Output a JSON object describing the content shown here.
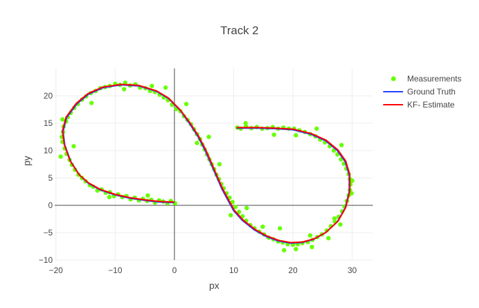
{
  "chart_data": {
    "type": "scatter",
    "title": "Track 2",
    "xlabel": "px",
    "ylabel": "py",
    "xlim": [
      -20.2,
      33.5
    ],
    "ylim": [
      -10,
      25
    ],
    "x_ticks": [
      -20,
      -10,
      0,
      10,
      20,
      30
    ],
    "y_ticks": [
      -10,
      -5,
      0,
      5,
      10,
      15,
      20
    ],
    "x_tick_labels": [
      "−20",
      "−10",
      "0",
      "10",
      "20",
      "30"
    ],
    "y_tick_labels": [
      "−10",
      "−5",
      "0",
      "5",
      "10",
      "15",
      "20"
    ],
    "grid": true,
    "zero_lines": true,
    "legend_position": "top-right",
    "legend": [
      {
        "name": "Measurements",
        "marker": "dot",
        "color": "#66ff00"
      },
      {
        "name": "Ground Truth",
        "marker": "line",
        "color": "#1f3fff"
      },
      {
        "name": "KF- Estimate",
        "marker": "line",
        "color": "#ff0000"
      }
    ],
    "series": [
      {
        "name": "Ground Truth",
        "kind": "line",
        "color": "#1f3fff",
        "points": [
          [
            0.0,
            0.5
          ],
          [
            -2.5,
            0.6
          ],
          [
            -5.0,
            0.9
          ],
          [
            -7.5,
            1.3
          ],
          [
            -10.0,
            1.9
          ],
          [
            -12.5,
            2.8
          ],
          [
            -14.5,
            4.0
          ],
          [
            -16.0,
            5.5
          ],
          [
            -17.5,
            8.0
          ],
          [
            -18.5,
            11.0
          ],
          [
            -18.8,
            13.5
          ],
          [
            -18.2,
            16.0
          ],
          [
            -16.5,
            18.5
          ],
          [
            -14.5,
            20.3
          ],
          [
            -12.0,
            21.5
          ],
          [
            -9.0,
            22.0
          ],
          [
            -6.0,
            21.8
          ],
          [
            -3.0,
            20.8
          ],
          [
            -1.0,
            19.5
          ],
          [
            1.0,
            17.3
          ],
          [
            2.5,
            15.0
          ],
          [
            4.0,
            12.5
          ],
          [
            5.2,
            10.0
          ],
          [
            6.2,
            7.5
          ],
          [
            7.2,
            5.0
          ],
          [
            8.0,
            3.0
          ],
          [
            9.0,
            1.0
          ],
          [
            10.0,
            -1.0
          ],
          [
            11.5,
            -2.8
          ],
          [
            13.5,
            -4.5
          ],
          [
            15.5,
            -5.7
          ],
          [
            17.5,
            -6.5
          ],
          [
            19.5,
            -6.9
          ],
          [
            21.5,
            -6.8
          ],
          [
            23.5,
            -6.2
          ],
          [
            25.5,
            -5.0
          ],
          [
            27.5,
            -3.0
          ],
          [
            28.8,
            -0.5
          ],
          [
            29.5,
            2.5
          ],
          [
            29.5,
            5.5
          ],
          [
            28.8,
            8.0
          ],
          [
            27.5,
            10.0
          ],
          [
            25.5,
            11.8
          ],
          [
            23.0,
            13.0
          ],
          [
            20.0,
            13.8
          ],
          [
            17.0,
            14.0
          ],
          [
            14.0,
            14.1
          ],
          [
            10.5,
            14.1
          ]
        ]
      },
      {
        "name": "KF- Estimate",
        "kind": "line",
        "color": "#ff0000",
        "points": [
          [
            0.0,
            0.6
          ],
          [
            -2.5,
            0.7
          ],
          [
            -5.0,
            1.0
          ],
          [
            -7.5,
            1.4
          ],
          [
            -10.0,
            2.0
          ],
          [
            -12.5,
            2.9
          ],
          [
            -14.5,
            4.1
          ],
          [
            -16.1,
            5.6
          ],
          [
            -17.6,
            8.1
          ],
          [
            -18.6,
            11.1
          ],
          [
            -18.9,
            13.6
          ],
          [
            -18.3,
            16.1
          ],
          [
            -16.6,
            18.6
          ],
          [
            -14.6,
            20.4
          ],
          [
            -12.1,
            21.6
          ],
          [
            -9.0,
            22.1
          ],
          [
            -6.0,
            21.9
          ],
          [
            -3.0,
            20.9
          ],
          [
            -1.0,
            19.6
          ],
          [
            1.0,
            17.4
          ],
          [
            2.6,
            15.1
          ],
          [
            4.1,
            12.6
          ],
          [
            5.3,
            10.1
          ],
          [
            6.3,
            7.6
          ],
          [
            7.3,
            5.1
          ],
          [
            8.1,
            3.1
          ],
          [
            9.1,
            1.1
          ],
          [
            10.1,
            -0.9
          ],
          [
            11.6,
            -2.7
          ],
          [
            13.6,
            -4.4
          ],
          [
            15.6,
            -5.6
          ],
          [
            17.6,
            -6.4
          ],
          [
            19.6,
            -6.8
          ],
          [
            21.6,
            -6.7
          ],
          [
            23.6,
            -6.1
          ],
          [
            25.6,
            -4.9
          ],
          [
            27.6,
            -2.9
          ],
          [
            28.9,
            -0.4
          ],
          [
            29.6,
            2.6
          ],
          [
            29.6,
            5.6
          ],
          [
            28.9,
            8.1
          ],
          [
            27.6,
            10.1
          ],
          [
            25.6,
            11.9
          ],
          [
            23.1,
            13.1
          ],
          [
            20.1,
            13.9
          ],
          [
            17.1,
            14.1
          ],
          [
            14.1,
            14.2
          ],
          [
            10.5,
            14.2
          ]
        ]
      },
      {
        "name": "Measurements",
        "kind": "scatter",
        "color": "#66ff00",
        "points": [
          [
            0.1,
            0.4
          ],
          [
            -0.6,
            0.8
          ],
          [
            -1.2,
            0.4
          ],
          [
            -1.9,
            0.7
          ],
          [
            -2.6,
            0.9
          ],
          [
            -3.3,
            0.5
          ],
          [
            -3.9,
            1.0
          ],
          [
            -4.6,
            0.8
          ],
          [
            -5.3,
            1.2
          ],
          [
            -6.0,
            0.9
          ],
          [
            -6.7,
            1.4
          ],
          [
            -7.4,
            1.1
          ],
          [
            -8.1,
            1.7
          ],
          [
            -8.8,
            1.5
          ],
          [
            -9.5,
            2.0
          ],
          [
            -10.2,
            1.7
          ],
          [
            -10.9,
            2.4
          ],
          [
            -11.6,
            2.3
          ],
          [
            -12.3,
            2.9
          ],
          [
            -13.0,
            2.7
          ],
          [
            -13.7,
            3.4
          ],
          [
            -14.3,
            3.7
          ],
          [
            -15.0,
            4.4
          ],
          [
            -15.6,
            5.0
          ],
          [
            -16.2,
            5.6
          ],
          [
            -16.8,
            6.5
          ],
          [
            -17.3,
            7.4
          ],
          [
            -17.7,
            8.3
          ],
          [
            -18.2,
            9.4
          ],
          [
            -18.5,
            10.4
          ],
          [
            -18.9,
            11.6
          ],
          [
            -19.0,
            12.5
          ],
          [
            -18.8,
            13.4
          ],
          [
            -18.7,
            14.4
          ],
          [
            -18.3,
            15.3
          ],
          [
            -18.0,
            16.1
          ],
          [
            -17.5,
            16.9
          ],
          [
            -16.9,
            17.8
          ],
          [
            -16.3,
            18.5
          ],
          [
            -15.6,
            19.3
          ],
          [
            -14.9,
            19.9
          ],
          [
            -14.1,
            20.5
          ],
          [
            -13.3,
            20.9
          ],
          [
            -12.5,
            21.4
          ],
          [
            -11.7,
            21.6
          ],
          [
            -10.9,
            21.8
          ],
          [
            -10.0,
            22.2
          ],
          [
            -9.2,
            22.0
          ],
          [
            -8.3,
            22.4
          ],
          [
            -7.5,
            21.9
          ],
          [
            -6.6,
            22.1
          ],
          [
            -5.8,
            21.5
          ],
          [
            -4.9,
            21.4
          ],
          [
            -4.1,
            20.9
          ],
          [
            -3.3,
            20.7
          ],
          [
            -2.5,
            20.2
          ],
          [
            -1.8,
            19.7
          ],
          [
            -1.1,
            19.2
          ],
          [
            -0.4,
            18.4
          ],
          [
            0.3,
            17.6
          ],
          [
            1.0,
            17.2
          ],
          [
            1.6,
            16.3
          ],
          [
            2.2,
            15.6
          ],
          [
            2.8,
            14.8
          ],
          [
            3.3,
            13.9
          ],
          [
            3.8,
            13.0
          ],
          [
            4.3,
            12.1
          ],
          [
            4.7,
            11.1
          ],
          [
            5.1,
            10.2
          ],
          [
            5.5,
            9.3
          ],
          [
            5.9,
            8.4
          ],
          [
            6.3,
            7.5
          ],
          [
            6.7,
            6.6
          ],
          [
            7.1,
            5.6
          ],
          [
            7.5,
            4.8
          ],
          [
            7.9,
            3.9
          ],
          [
            8.3,
            3.1
          ],
          [
            8.8,
            2.2
          ],
          [
            9.3,
            1.4
          ],
          [
            9.8,
            0.6
          ],
          [
            10.3,
            -0.3
          ],
          [
            10.9,
            -1.2
          ],
          [
            11.5,
            -2.0
          ],
          [
            12.1,
            -2.8
          ],
          [
            12.8,
            -3.6
          ],
          [
            13.5,
            -4.2
          ],
          [
            14.3,
            -4.8
          ],
          [
            15.1,
            -5.3
          ],
          [
            15.9,
            -5.9
          ],
          [
            16.7,
            -6.2
          ],
          [
            17.5,
            -6.6
          ],
          [
            18.3,
            -6.8
          ],
          [
            19.1,
            -7.1
          ],
          [
            20.0,
            -7.2
          ],
          [
            20.8,
            -7.1
          ],
          [
            21.6,
            -6.9
          ],
          [
            22.5,
            -6.7
          ],
          [
            23.3,
            -6.3
          ],
          [
            24.1,
            -5.8
          ],
          [
            24.9,
            -5.3
          ],
          [
            25.7,
            -4.6
          ],
          [
            26.4,
            -3.8
          ],
          [
            27.1,
            -3.0
          ],
          [
            27.7,
            -2.1
          ],
          [
            28.3,
            -1.1
          ],
          [
            28.7,
            -0.2
          ],
          [
            29.1,
            0.8
          ],
          [
            29.4,
            1.8
          ],
          [
            29.6,
            2.8
          ],
          [
            29.7,
            3.8
          ],
          [
            29.6,
            4.8
          ],
          [
            29.4,
            5.7
          ],
          [
            29.0,
            6.7
          ],
          [
            28.6,
            7.6
          ],
          [
            28.1,
            8.4
          ],
          [
            27.5,
            9.3
          ],
          [
            26.9,
            10.0
          ],
          [
            26.2,
            10.8
          ],
          [
            25.4,
            11.5
          ],
          [
            24.6,
            12.0
          ],
          [
            23.8,
            12.6
          ],
          [
            22.9,
            13.0
          ],
          [
            22.0,
            13.4
          ],
          [
            21.1,
            13.7
          ],
          [
            20.2,
            14.0
          ],
          [
            19.3,
            14.0
          ],
          [
            18.4,
            14.2
          ],
          [
            17.5,
            14.0
          ],
          [
            16.6,
            14.3
          ],
          [
            15.7,
            14.1
          ],
          [
            14.8,
            14.0
          ],
          [
            13.9,
            14.3
          ],
          [
            13.0,
            14.1
          ],
          [
            12.1,
            14.4
          ],
          [
            11.2,
            14.0
          ],
          [
            10.6,
            14.2
          ],
          [
            -19.2,
            8.9
          ],
          [
            -17.0,
            10.8
          ],
          [
            -11.0,
            1.5
          ],
          [
            -4.5,
            1.8
          ],
          [
            -1.5,
            21.5
          ],
          [
            2.0,
            18.5
          ],
          [
            5.8,
            12.5
          ],
          [
            7.6,
            7.5
          ],
          [
            12.2,
            -0.5
          ],
          [
            17.8,
            -4.2
          ],
          [
            18.5,
            -8.2
          ],
          [
            20.5,
            -8.0
          ],
          [
            26.0,
            -6.0
          ],
          [
            28.0,
            -3.5
          ],
          [
            30.0,
            4.5
          ],
          [
            29.9,
            2.2
          ],
          [
            28.2,
            11.0
          ],
          [
            24.0,
            14.0
          ],
          [
            20.5,
            12.8
          ],
          [
            16.8,
            12.9
          ],
          [
            12.0,
            15.0
          ],
          [
            -18.9,
            15.7
          ],
          [
            -14.0,
            18.7
          ],
          [
            -8.5,
            21.2
          ],
          [
            -3.8,
            21.8
          ],
          [
            3.8,
            11.4
          ],
          [
            9.5,
            -1.8
          ],
          [
            14.9,
            -3.9
          ],
          [
            22.9,
            -5.5
          ],
          [
            23.2,
            -7.6
          ],
          [
            27.0,
            -2.4
          ]
        ]
      }
    ]
  }
}
